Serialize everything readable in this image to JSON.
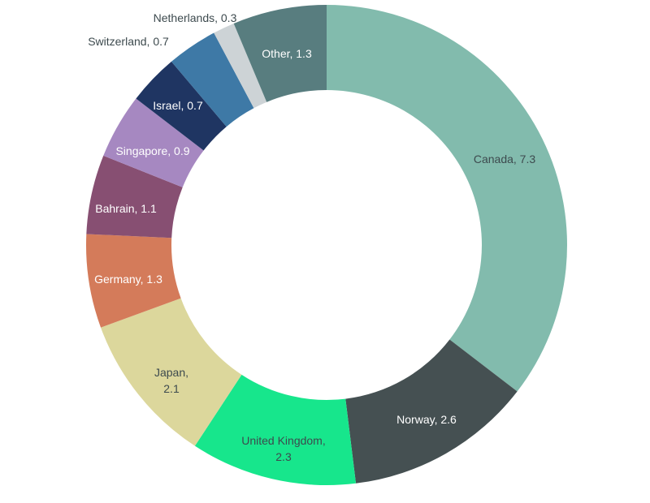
{
  "chart_data": {
    "type": "pie",
    "variant": "donut",
    "title": "",
    "series": [
      {
        "values": [
          7.3,
          2.6,
          2.3,
          2.1,
          1.3,
          1.1,
          0.9,
          0.7,
          0.7,
          0.3,
          1.3
        ],
        "categories": [
          "Canada",
          "Norway",
          "United Kingdom",
          "Japan",
          "Germany",
          "Bahrain",
          "Singapore",
          "Israel",
          "Switzerland",
          "Netherlands",
          "Other"
        ]
      }
    ],
    "slices": [
      {
        "name": "Canada",
        "value": 7.3,
        "label_lines": [
          "Canada, 7.3"
        ],
        "color": "#82bbad",
        "label_color": "#3d4a4e"
      },
      {
        "name": "Norway",
        "value": 2.6,
        "label_lines": [
          "Norway, 2.6"
        ],
        "color": "#455052",
        "label_color": "#ffffff"
      },
      {
        "name": "United Kingdom",
        "value": 2.3,
        "label_lines": [
          "United Kingdom,",
          "2.3"
        ],
        "color": "#17e68c",
        "label_color": "#3d4a4e"
      },
      {
        "name": "Japan",
        "value": 2.1,
        "label_lines": [
          "Japan,",
          "2.1"
        ],
        "color": "#dcd79c",
        "label_color": "#3d4a4e"
      },
      {
        "name": "Germany",
        "value": 1.3,
        "label_lines": [
          "Germany, 1.3"
        ],
        "color": "#d47b5a",
        "label_color": "#ffffff"
      },
      {
        "name": "Bahrain",
        "value": 1.1,
        "label_lines": [
          "Bahrain, 1.1"
        ],
        "color": "#874f72",
        "label_color": "#ffffff"
      },
      {
        "name": "Singapore",
        "value": 0.9,
        "label_lines": [
          "Singapore, 0.9"
        ],
        "color": "#a688c1",
        "label_color": "#ffffff"
      },
      {
        "name": "Israel",
        "value": 0.7,
        "label_lines": [
          "Israel, 0.7"
        ],
        "color": "#1f3562",
        "label_color": "#ffffff"
      },
      {
        "name": "Switzerland",
        "value": 0.7,
        "label_lines": [
          "Switzerland, 0.7"
        ],
        "color": "#3e79a6",
        "label_color": "#3d4a4e"
      },
      {
        "name": "Netherlands",
        "value": 0.3,
        "label_lines": [
          "Netherlands, 0.3"
        ],
        "color": "#cdd3d6",
        "label_color": "#3d4a4e"
      },
      {
        "name": "Other",
        "value": 1.3,
        "label_lines": [
          "Other, 1.3"
        ],
        "color": "#587d7f",
        "label_color": "#ffffff"
      }
    ]
  }
}
